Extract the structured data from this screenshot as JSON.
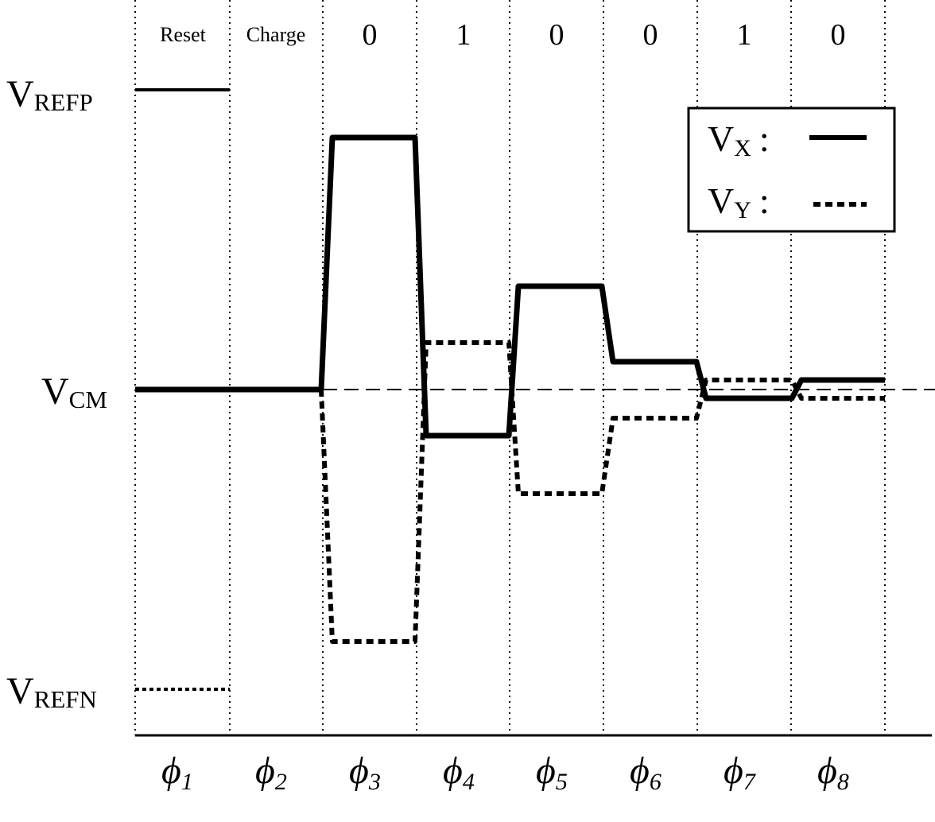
{
  "levels": [
    {
      "main": "V",
      "sub": "REFP"
    },
    {
      "main": "V",
      "sub": "CM"
    },
    {
      "main": "V",
      "sub": "REFN"
    }
  ],
  "phases": [
    {
      "label": "Reset",
      "phi": "ϕ",
      "sub": "1"
    },
    {
      "label": "Charge",
      "phi": "ϕ",
      "sub": "2"
    },
    {
      "label": "0",
      "phi": "ϕ",
      "sub": "3"
    },
    {
      "label": "1",
      "phi": "ϕ",
      "sub": "4"
    },
    {
      "label": "0",
      "phi": "ϕ",
      "sub": "5"
    },
    {
      "label": "0",
      "phi": "ϕ",
      "sub": "6"
    },
    {
      "label": "1",
      "phi": "ϕ",
      "sub": "7"
    },
    {
      "label": "0",
      "phi": "ϕ",
      "sub": "8"
    }
  ],
  "legend": [
    {
      "main": "V",
      "sub": "X",
      "sep": ":",
      "style": "solid"
    },
    {
      "main": "V",
      "sub": "Y",
      "sep": ":",
      "style": "dotted"
    }
  ]
}
